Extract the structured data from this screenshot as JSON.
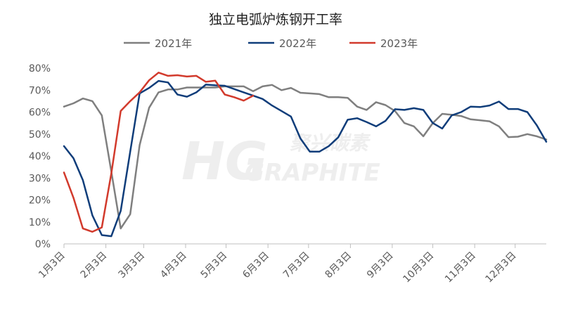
{
  "chart_data": {
    "type": "line",
    "title": "独立电弧炉炼钢开工率",
    "xlabel": "",
    "ylabel": "",
    "ylim": [
      0,
      80
    ],
    "y_ticks": [
      "0%",
      "10%",
      "20%",
      "30%",
      "40%",
      "50%",
      "60%",
      "70%",
      "80%"
    ],
    "x_ticks": [
      "1月3日",
      "2月3日",
      "3月3日",
      "4月3日",
      "5月3日",
      "6月3日",
      "7月3日",
      "8月3日",
      "9月3日",
      "10月3日",
      "11月3日",
      "12月3日"
    ],
    "x_unit": "week index (52 weeks, 1月3日 = week 0)",
    "legend_position": "top",
    "grid": false,
    "colors": {
      "2021年": "#7f7f7f",
      "2022年": "#0f3d7a",
      "2023年": "#d23a2c"
    },
    "series": [
      {
        "name": "2021年",
        "values": [
          62.5,
          64,
          66.2,
          65,
          58.5,
          33,
          7,
          13.5,
          45,
          62,
          69,
          70.3,
          70.3,
          71.2,
          71.2,
          71.2,
          71.2,
          71.7,
          71.7,
          71.7,
          69.5,
          71.7,
          72.4,
          70,
          71,
          68.8,
          68.5,
          68.2,
          66.8,
          66.8,
          66.5,
          62.5,
          61,
          64.5,
          63.2,
          60.5,
          55,
          53.5,
          49,
          55,
          59.2,
          58.8,
          58.2,
          56.7,
          56.3,
          55.8,
          53.5,
          48.6,
          48.8,
          50,
          49,
          47.5
        ]
      },
      {
        "name": "2022年",
        "values": [
          44.5,
          39,
          29,
          13,
          4,
          3.5,
          15,
          42,
          68.5,
          71,
          74.2,
          73.5,
          68,
          67,
          69,
          72.5,
          72.2,
          72,
          70.5,
          69,
          67.5,
          66,
          63,
          60.5,
          58,
          48,
          42,
          42,
          44.5,
          48.5,
          56.5,
          57.2,
          55.5,
          53.5,
          56,
          61.3,
          61,
          61.8,
          61,
          55,
          52.5,
          58.5,
          60,
          62.5,
          62.3,
          63,
          64.8,
          61.4,
          61.4,
          60,
          54,
          46.5
        ]
      },
      {
        "name": "2023年",
        "values": [
          32.5,
          21,
          7,
          5.5,
          7.5,
          32,
          60.5,
          65,
          69,
          74.5,
          78,
          76.5,
          76.8,
          76.2,
          76.5,
          73.8,
          74.3,
          68,
          66.8,
          65.2,
          67.5
        ]
      }
    ]
  },
  "watermark": {
    "text_top": "聚兴碳素",
    "text_main": "GRAPHITE",
    "logo": "HG"
  }
}
